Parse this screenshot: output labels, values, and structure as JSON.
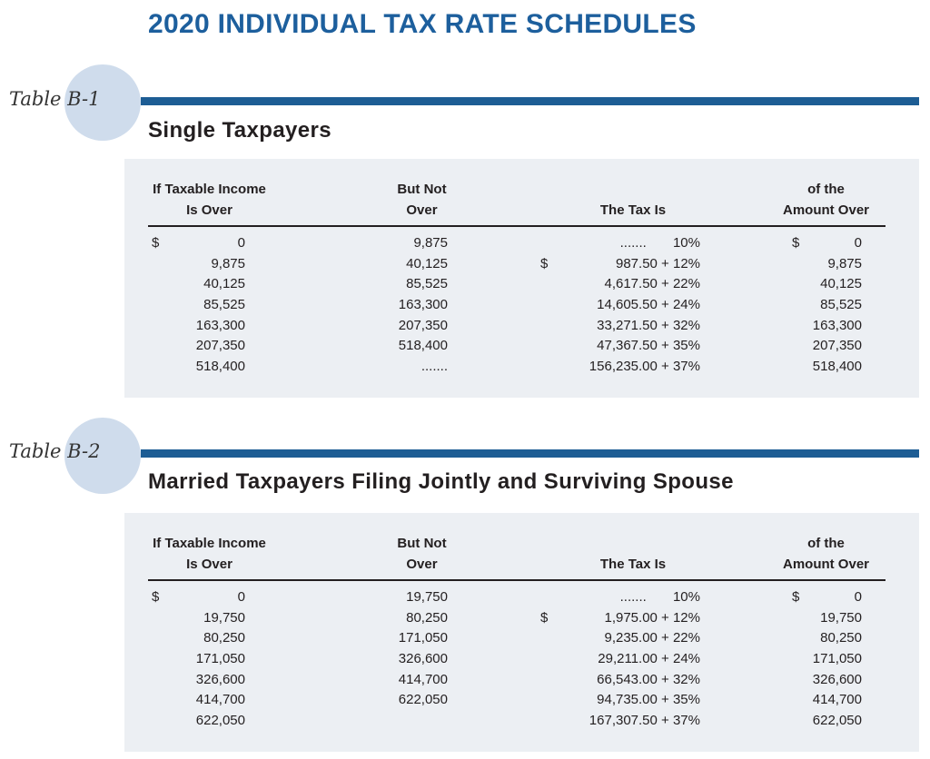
{
  "title": "2020 INDIVIDUAL TAX RATE SCHEDULES",
  "colors": {
    "title": "#1d5f9d",
    "bar": "#1d5d94",
    "circle": "#cfdcec",
    "panel": "#eceff3"
  },
  "tables": [
    {
      "label": "Table B-1",
      "heading": "Single Taxpayers",
      "headers": {
        "col1": [
          "If Taxable Income",
          "Is Over"
        ],
        "col2": [
          "But Not",
          "Over"
        ],
        "col3": [
          "The Tax Is"
        ],
        "col4": [
          "of the",
          "Amount Over"
        ]
      },
      "rows": [
        {
          "over_prefix": "$",
          "over": "0",
          "not_over": "9,875",
          "tax_prefix": "",
          "tax": ".......       10%",
          "amount_prefix": "$",
          "amount_over": "0"
        },
        {
          "over_prefix": "",
          "over": "9,875",
          "not_over": "40,125",
          "tax_prefix": "$",
          "tax": "987.50 + 12%",
          "amount_prefix": "",
          "amount_over": "9,875"
        },
        {
          "over_prefix": "",
          "over": "40,125",
          "not_over": "85,525",
          "tax_prefix": "",
          "tax": "4,617.50 + 22%",
          "amount_prefix": "",
          "amount_over": "40,125"
        },
        {
          "over_prefix": "",
          "over": "85,525",
          "not_over": "163,300",
          "tax_prefix": "",
          "tax": "14,605.50 + 24%",
          "amount_prefix": "",
          "amount_over": "85,525"
        },
        {
          "over_prefix": "",
          "over": "163,300",
          "not_over": "207,350",
          "tax_prefix": "",
          "tax": "33,271.50 + 32%",
          "amount_prefix": "",
          "amount_over": "163,300"
        },
        {
          "over_prefix": "",
          "over": "207,350",
          "not_over": "518,400",
          "tax_prefix": "",
          "tax": "47,367.50 + 35%",
          "amount_prefix": "",
          "amount_over": "207,350"
        },
        {
          "over_prefix": "",
          "over": "518,400",
          "not_over": ".......",
          "tax_prefix": "",
          "tax": "156,235.00 + 37%",
          "amount_prefix": "",
          "amount_over": "518,400"
        }
      ]
    },
    {
      "label": "Table B-2",
      "heading": "Married Taxpayers Filing Jointly and Surviving Spouse",
      "headers": {
        "col1": [
          "If Taxable Income",
          "Is Over"
        ],
        "col2": [
          "But Not",
          "Over"
        ],
        "col3": [
          "The Tax Is"
        ],
        "col4": [
          "of the",
          "Amount Over"
        ]
      },
      "rows": [
        {
          "over_prefix": "$",
          "over": "0",
          "not_over": "19,750",
          "tax_prefix": "",
          "tax": ".......       10%",
          "amount_prefix": "$",
          "amount_over": "0"
        },
        {
          "over_prefix": "",
          "over": "19,750",
          "not_over": "80,250",
          "tax_prefix": "$",
          "tax": "1,975.00 + 12%",
          "amount_prefix": "",
          "amount_over": "19,750"
        },
        {
          "over_prefix": "",
          "over": "80,250",
          "not_over": "171,050",
          "tax_prefix": "",
          "tax": "9,235.00 + 22%",
          "amount_prefix": "",
          "amount_over": "80,250"
        },
        {
          "over_prefix": "",
          "over": "171,050",
          "not_over": "326,600",
          "tax_prefix": "",
          "tax": "29,211.00 + 24%",
          "amount_prefix": "",
          "amount_over": "171,050"
        },
        {
          "over_prefix": "",
          "over": "326,600",
          "not_over": "414,700",
          "tax_prefix": "",
          "tax": "66,543.00 + 32%",
          "amount_prefix": "",
          "amount_over": "326,600"
        },
        {
          "over_prefix": "",
          "over": "414,700",
          "not_over": "622,050",
          "tax_prefix": "",
          "tax": "94,735.00 + 35%",
          "amount_prefix": "",
          "amount_over": "414,700"
        },
        {
          "over_prefix": "",
          "over": "622,050",
          "not_over": "",
          "tax_prefix": "",
          "tax": "167,307.50 + 37%",
          "amount_prefix": "",
          "amount_over": "622,050"
        }
      ]
    }
  ]
}
